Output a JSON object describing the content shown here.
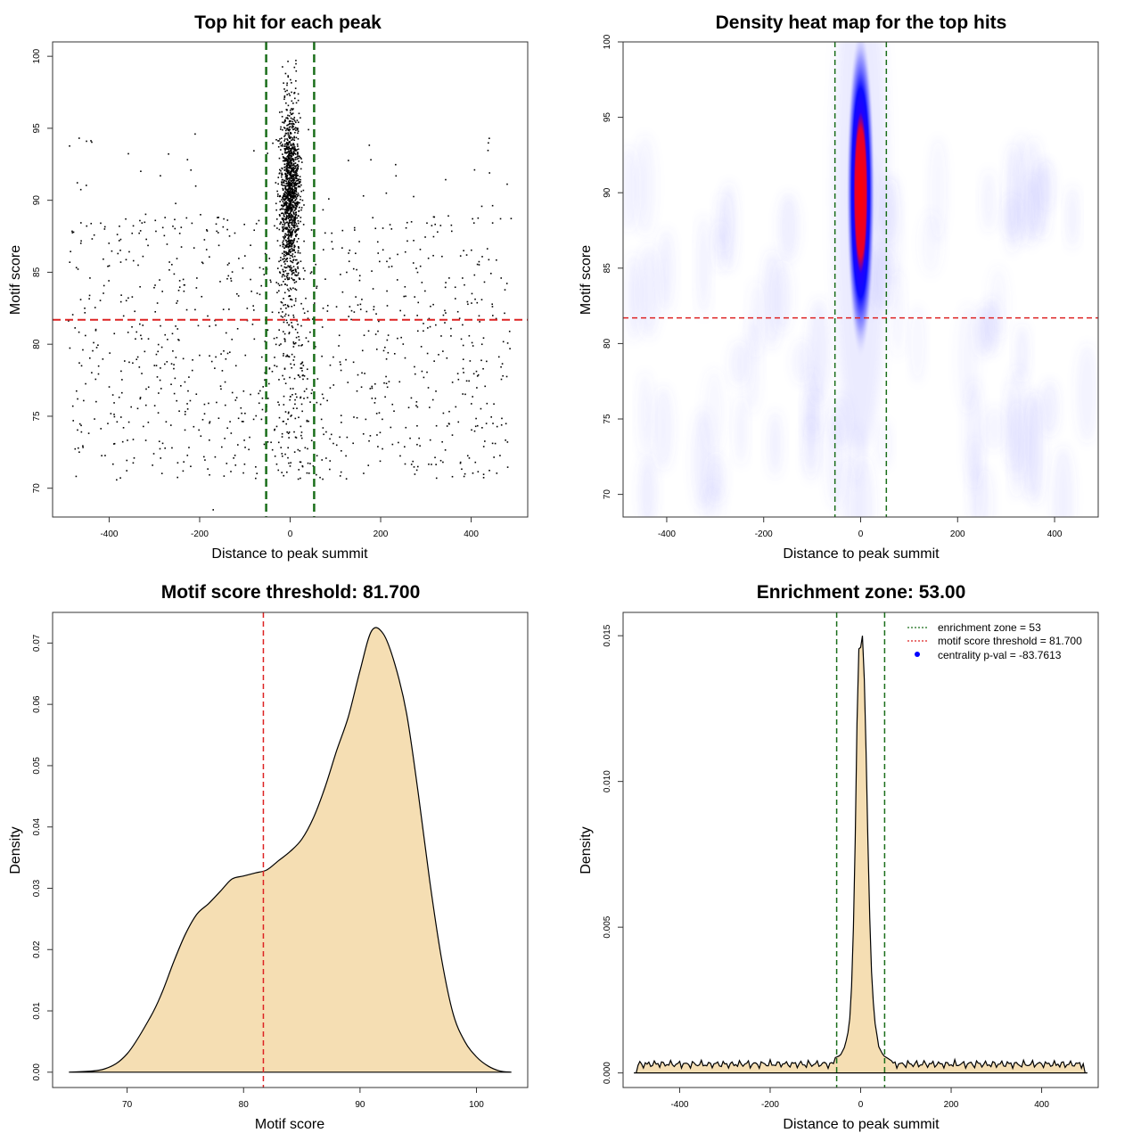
{
  "colors": {
    "threshold_line": "#dd2222",
    "zone_line": "#1a6e1a",
    "density_fill": "#f5deb3",
    "points": "#000000",
    "heat_low": "#ffffff",
    "heat_mid": "#0000ff",
    "heat_high": "#ff0000",
    "legend_point": "#0000ff"
  },
  "chart_data": [
    {
      "id": "scatter",
      "type": "scatter",
      "title": "Top hit for each peak",
      "xlabel": "Distance to peak summit",
      "ylabel": "Motif score",
      "xlim": [
        -525,
        525
      ],
      "ylim": [
        68,
        101
      ],
      "xticks": [
        -400,
        -200,
        0,
        200,
        400
      ],
      "yticks": [
        70,
        75,
        80,
        85,
        90,
        95,
        100
      ],
      "threshold": 81.7,
      "enrichment_zone": [
        -53,
        53
      ],
      "clusters": [
        {
          "name": "central",
          "n": 1300,
          "x_center": 0,
          "x_sd": 11,
          "y_center": 90.5,
          "y_sd": 3.0,
          "y_min": 80,
          "y_max": 100
        },
        {
          "name": "central-low",
          "n": 160,
          "x_center": 0,
          "x_sd": 20,
          "y_min": 71,
          "y_max": 86
        },
        {
          "name": "background",
          "n": 900,
          "x_min": -490,
          "x_max": 490,
          "y_min": 70.5,
          "y_max": 89
        },
        {
          "name": "background-high",
          "n": 40,
          "x_min": -490,
          "x_max": 490,
          "y_min": 88,
          "y_max": 95
        }
      ],
      "outliers": [
        {
          "x": -170,
          "y": 68.5
        },
        {
          "x": -210,
          "y": 94.6
        },
        {
          "x": -450,
          "y": 94.1
        },
        {
          "x": 440,
          "y": 94.3
        }
      ]
    },
    {
      "id": "heatmap",
      "type": "heatmap",
      "title": "Density heat map for the top hits",
      "xlabel": "Distance to peak summit",
      "ylabel": "Motif score",
      "xlim": [
        -490,
        490
      ],
      "ylim": [
        68.5,
        100
      ],
      "xticks": [
        -400,
        -200,
        0,
        200,
        400
      ],
      "yticks": [
        70,
        75,
        80,
        85,
        90,
        95,
        100
      ],
      "threshold": 81.7,
      "enrichment_zone": [
        -53,
        53
      ],
      "hotspot": {
        "x_center": 0,
        "x_sd": 13,
        "y_center": 90,
        "y_sd": 3.6
      }
    },
    {
      "id": "score-density",
      "type": "area",
      "title": "Motif score threshold: 81.700",
      "xlabel": "Motif score",
      "ylabel": "Density",
      "xlim": [
        63.6,
        104.4
      ],
      "ylim": [
        -0.0025,
        0.075
      ],
      "xticks": [
        70,
        80,
        90,
        100
      ],
      "yticks": [
        0.0,
        0.01,
        0.02,
        0.03,
        0.04,
        0.05,
        0.06,
        0.07
      ],
      "ytick_labels": [
        "0.00",
        "0.01",
        "0.02",
        "0.03",
        "0.04",
        "0.05",
        "0.06",
        "0.07"
      ],
      "threshold": 81.7,
      "x": [
        65,
        68,
        70,
        72,
        73,
        74,
        75,
        76,
        77,
        78,
        79,
        80,
        81,
        82,
        83,
        84,
        85,
        86,
        87,
        88,
        89,
        90,
        91,
        92,
        93,
        94,
        95,
        96,
        97,
        98,
        99,
        100,
        101,
        102,
        103
      ],
      "y": [
        0.0,
        0.0005,
        0.003,
        0.009,
        0.013,
        0.018,
        0.0225,
        0.0258,
        0.0275,
        0.0295,
        0.0315,
        0.032,
        0.0325,
        0.033,
        0.0345,
        0.036,
        0.038,
        0.0415,
        0.0465,
        0.0525,
        0.058,
        0.0655,
        0.072,
        0.0715,
        0.0665,
        0.0585,
        0.0455,
        0.031,
        0.0185,
        0.0095,
        0.005,
        0.0025,
        0.001,
        0.0002,
        0.0
      ],
      "peak": {
        "x": 90.5,
        "y": 0.072
      }
    },
    {
      "id": "distance-density",
      "type": "area",
      "title": "Enrichment zone: 53.00",
      "xlabel": "Distance to peak summit",
      "ylabel": "Density",
      "xlim": [
        -525,
        525
      ],
      "ylim": [
        -0.0005,
        0.0158
      ],
      "xticks": [
        -400,
        -200,
        0,
        200,
        400
      ],
      "yticks": [
        0.0,
        0.005,
        0.01,
        0.015
      ],
      "ytick_labels": [
        "0.000",
        "0.005",
        "0.010",
        "0.015"
      ],
      "enrichment_zone": [
        -53,
        53
      ],
      "baseline": 0.0003,
      "x": [
        -60,
        -45,
        -35,
        -25,
        -18,
        -12,
        -6,
        -2,
        0,
        2,
        4,
        6,
        10,
        16,
        22,
        30,
        40,
        50,
        60,
        70
      ],
      "y": [
        0.0005,
        0.0006,
        0.0009,
        0.0016,
        0.0035,
        0.008,
        0.014,
        0.0151,
        0.0146,
        0.0144,
        0.015,
        0.0145,
        0.0125,
        0.008,
        0.004,
        0.0019,
        0.0009,
        0.0006,
        0.0005,
        0.0004
      ],
      "legend": [
        {
          "label": "enrichment zone = 53",
          "kind": "dotted-line",
          "color": "#1a6e1a"
        },
        {
          "label": "motif score threshold = 81.700",
          "kind": "dotted-line",
          "color": "#dd2222"
        },
        {
          "label": "centrality p-val = -83.7613",
          "kind": "point",
          "color": "#0000ff"
        }
      ]
    }
  ]
}
